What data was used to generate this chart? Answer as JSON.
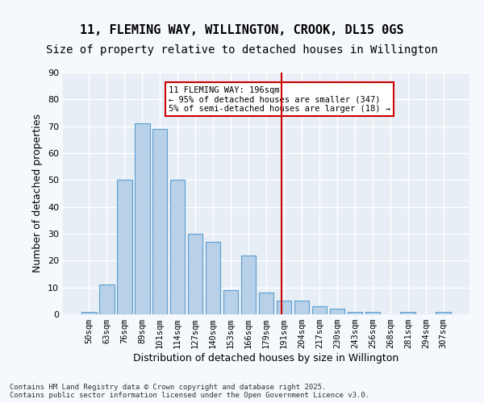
{
  "title": "11, FLEMING WAY, WILLINGTON, CROOK, DL15 0GS",
  "subtitle": "Size of property relative to detached houses in Willington",
  "xlabel": "Distribution of detached houses by size in Willington",
  "ylabel": "Number of detached properties",
  "bar_color": "#b8d0e8",
  "bar_edge_color": "#5a9fd4",
  "categories": [
    "50sqm",
    "63sqm",
    "76sqm",
    "89sqm",
    "101sqm",
    "114sqm",
    "127sqm",
    "140sqm",
    "153sqm",
    "166sqm",
    "179sqm",
    "191sqm",
    "204sqm",
    "217sqm",
    "230sqm",
    "243sqm",
    "256sqm",
    "268sqm",
    "281sqm",
    "294sqm",
    "307sqm"
  ],
  "values": [
    1,
    11,
    50,
    71,
    69,
    50,
    30,
    27,
    9,
    22,
    8,
    5,
    5,
    3,
    2,
    1,
    1,
    0,
    1,
    0,
    1
  ],
  "vline_x": 10.85,
  "vline_color": "#cc0000",
  "annotation_text": "11 FLEMING WAY: 196sqm\n← 95% of detached houses are smaller (347)\n5% of semi-detached houses are larger (18) →",
  "annotation_box_color": "#cc0000",
  "ylim": [
    0,
    90
  ],
  "yticks": [
    0,
    10,
    20,
    30,
    40,
    50,
    60,
    70,
    80,
    90
  ],
  "background_color": "#e8eef5",
  "grid_color": "#ffffff",
  "footer": "Contains HM Land Registry data © Crown copyright and database right 2025.\nContains public sector information licensed under the Open Government Licence v3.0.",
  "title_fontsize": 11,
  "subtitle_fontsize": 10,
  "xlabel_fontsize": 9,
  "ylabel_fontsize": 9
}
